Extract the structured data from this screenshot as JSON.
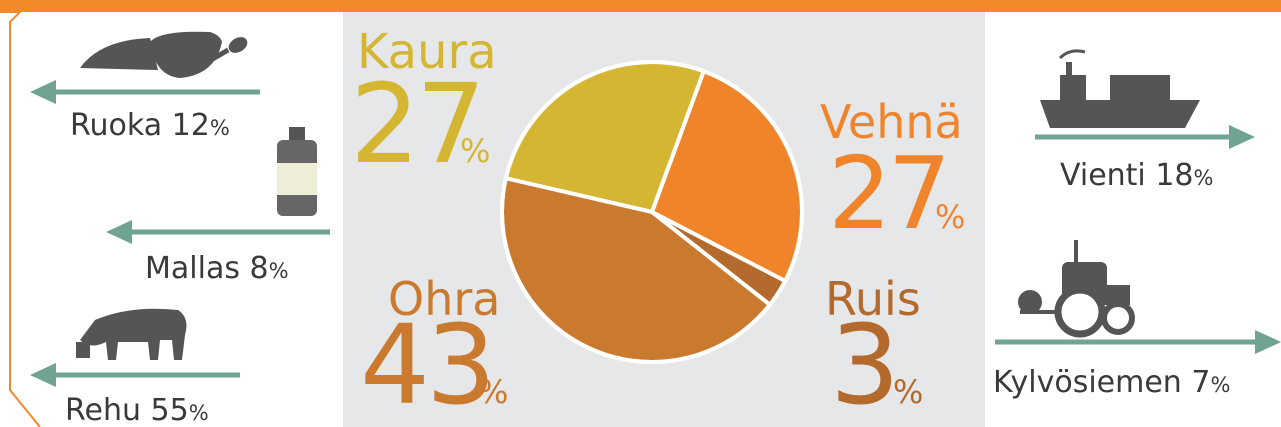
{
  "chart_data": {
    "type": "pie",
    "categories": [
      "Kaura",
      "Vehnä",
      "Ruis",
      "Ohra"
    ],
    "values": [
      27,
      27,
      3,
      43
    ],
    "colors": [
      "#d4b632",
      "#f0842a",
      "#b36a2c",
      "#c97a2e"
    ],
    "unit": "%"
  },
  "uses": [
    {
      "label": "Ruoka",
      "value": 12,
      "unit": "%"
    },
    {
      "label": "Mallas",
      "value": 8,
      "unit": "%"
    },
    {
      "label": "Rehu",
      "value": 55,
      "unit": "%"
    },
    {
      "label": "Vienti",
      "value": 18,
      "unit": "%"
    },
    {
      "label": "Kylvösiemen",
      "value": 7,
      "unit": "%"
    }
  ]
}
